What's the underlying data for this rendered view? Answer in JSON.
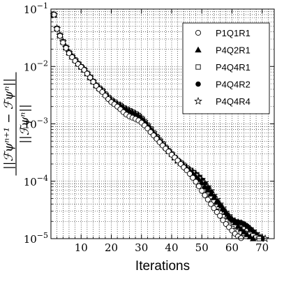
{
  "chart_data": {
    "type": "scatter",
    "xlabel": "Iterations",
    "ylabel": {
      "numerator": "||ℱψⁿ⁺¹ − ℱψⁿ||",
      "denominator": "||ℱψⁿ||"
    },
    "xlim": [
      0,
      74
    ],
    "ylim": [
      1e-05,
      0.1
    ],
    "yscale": "log",
    "grid": true,
    "legend_position": "top-right",
    "x_ticks": [
      {
        "value": 10,
        "label": "10"
      },
      {
        "value": 20,
        "label": "20"
      },
      {
        "value": 30,
        "label": "30"
      },
      {
        "value": 40,
        "label": "40"
      },
      {
        "value": 50,
        "label": "50"
      },
      {
        "value": 60,
        "label": "60"
      },
      {
        "value": 70,
        "label": "70"
      }
    ],
    "y_ticks": [
      {
        "value": 1e-05,
        "base": "10",
        "exp": "−5"
      },
      {
        "value": 0.0001,
        "base": "10",
        "exp": "−4"
      },
      {
        "value": 0.001,
        "base": "10",
        "exp": "−3"
      },
      {
        "value": 0.01,
        "base": "10",
        "exp": "−2"
      },
      {
        "value": 0.1,
        "base": "10",
        "exp": "−1"
      }
    ],
    "x": [
      1,
      2,
      3,
      4,
      5,
      6,
      7,
      8,
      9,
      10,
      11,
      12,
      13,
      14,
      15,
      16,
      17,
      18,
      19,
      20,
      21,
      22,
      23,
      24,
      25,
      26,
      27,
      28,
      29,
      30,
      31,
      32,
      33,
      34,
      35,
      36,
      37,
      38,
      39,
      40,
      41,
      42,
      43,
      44,
      45,
      46,
      47,
      48,
      49,
      50,
      51,
      52,
      53,
      54,
      55,
      56,
      57,
      58,
      59,
      60,
      61,
      62,
      63,
      64,
      65,
      66,
      67,
      68,
      69,
      70,
      71,
      72
    ],
    "series": [
      {
        "name": "P1Q1R1",
        "marker": "circle-open",
        "values": [
          0.08,
          0.045,
          0.034,
          0.026,
          0.021,
          0.017,
          0.0145,
          0.0125,
          0.011,
          0.0098,
          0.0087,
          0.0075,
          0.0064,
          0.0054,
          0.0046,
          0.004,
          0.0036,
          0.0031,
          0.0027,
          0.0024,
          0.0022,
          0.002,
          0.0018,
          0.0016,
          0.00145,
          0.00135,
          0.00128,
          0.00122,
          0.00115,
          0.00105,
          0.00094,
          0.00083,
          0.00072,
          0.00063,
          0.00055,
          0.00048,
          0.00042,
          0.00037,
          0.00033,
          0.00029,
          0.00026,
          0.00023,
          0.0002,
          0.000175,
          0.000155,
          0.000135,
          0.000115,
          9.8e-05,
          8.2e-05,
          6.8e-05,
          5.7e-05,
          4.8e-05,
          4e-05,
          3.4e-05,
          2.9e-05,
          2.5e-05,
          2.1e-05,
          1.8e-05,
          1.58e-05,
          1.38e-05,
          1.22e-05,
          1.1e-05,
          1.02e-05
        ]
      },
      {
        "name": "P4Q2R1",
        "marker": "triangle-filled",
        "values": [
          0.08,
          0.046,
          0.035,
          0.027,
          0.0215,
          0.0175,
          0.015,
          0.013,
          0.0113,
          0.0099,
          0.0088,
          0.0076,
          0.0065,
          0.0055,
          0.0047,
          0.0042,
          0.0038,
          0.0033,
          0.0029,
          0.0026,
          0.0024,
          0.0022,
          0.0021,
          0.0019,
          0.0018,
          0.0017,
          0.0016,
          0.0015,
          0.0014,
          0.00125,
          0.0011,
          0.00095,
          0.00082,
          0.0007,
          0.0006,
          0.00052,
          0.00045,
          0.00039,
          0.00034,
          0.0003,
          0.00026,
          0.00023,
          0.00021,
          0.00019,
          0.00017,
          0.000155,
          0.000138,
          0.000122,
          0.000108,
          9.5e-05,
          8.2e-05,
          7e-05,
          6e-05,
          5.2e-05,
          4.5e-05,
          3.9e-05,
          3.3e-05,
          2.9e-05,
          2.5e-05,
          2.2e-05,
          1.9e-05,
          1.65e-05,
          1.48e-05,
          1.32e-05,
          1.18e-05,
          1.08e-05,
          1e-05
        ]
      },
      {
        "name": "P4Q4R1",
        "marker": "square-open",
        "values": [
          0.08,
          0.046,
          0.035,
          0.027,
          0.0215,
          0.0175,
          0.015,
          0.013,
          0.0112,
          0.0099,
          0.0088,
          0.0076,
          0.0065,
          0.0055,
          0.0047,
          0.0042,
          0.0038,
          0.0033,
          0.0029,
          0.0026,
          0.0024,
          0.0022,
          0.0021,
          0.0019,
          0.0018,
          0.0017,
          0.0016,
          0.0015,
          0.0014,
          0.00125,
          0.0011,
          0.00095,
          0.00082,
          0.0007,
          0.0006,
          0.00052,
          0.00045,
          0.00039,
          0.00034,
          0.0003,
          0.00026,
          0.00023,
          0.00021,
          0.00019,
          0.00017,
          0.000155,
          0.00014,
          0.000125,
          0.00011,
          9.5e-05,
          8e-05,
          6.6e-05,
          5.4e-05,
          4.4e-05,
          3.6e-05,
          2.9e-05,
          2.4e-05,
          2e-05,
          1.7e-05,
          1.5e-05,
          1.38e-05,
          1.32e-05,
          1.28e-05,
          1.25e-05,
          1.22e-05,
          1.18e-05,
          1.12e-05,
          1.05e-05,
          1e-05
        ]
      },
      {
        "name": "P4Q4R2",
        "marker": "circle-filled",
        "values": [
          0.08,
          0.046,
          0.035,
          0.027,
          0.0215,
          0.0175,
          0.015,
          0.013,
          0.0112,
          0.0099,
          0.0088,
          0.0076,
          0.0065,
          0.0055,
          0.0047,
          0.0042,
          0.0038,
          0.0033,
          0.0029,
          0.0026,
          0.0024,
          0.0022,
          0.0021,
          0.0019,
          0.0018,
          0.0017,
          0.0016,
          0.0015,
          0.0014,
          0.00125,
          0.0011,
          0.00095,
          0.00082,
          0.0007,
          0.0006,
          0.00052,
          0.00045,
          0.00039,
          0.00034,
          0.0003,
          0.00026,
          0.00023,
          0.00021,
          0.00019,
          0.00017,
          0.000158,
          0.000145,
          0.000132,
          0.000118,
          0.000104,
          9e-05,
          7.7e-05,
          6.5e-05,
          5.4e-05,
          4.5e-05,
          3.8e-05,
          3.2e-05,
          2.7e-05,
          2.3e-05,
          2.1e-05,
          2e-05,
          1.95e-05,
          1.9e-05,
          1.8e-05,
          1.65e-05,
          1.48e-05,
          1.32e-05,
          1.18e-05,
          1.06e-05,
          1e-05
        ]
      },
      {
        "name": "P4Q4R4",
        "marker": "star-open",
        "values": [
          0.08,
          0.046,
          0.035,
          0.027,
          0.0215,
          0.0175,
          0.015,
          0.013,
          0.0112,
          0.0099,
          0.0088,
          0.0076,
          0.0065,
          0.0055,
          0.0047,
          0.0042,
          0.0038,
          0.0033,
          0.0029,
          0.0026,
          0.0024,
          0.0022,
          0.0021,
          0.0019,
          0.0018,
          0.0017,
          0.0016,
          0.0015,
          0.0014,
          0.00125,
          0.0011,
          0.00095,
          0.00082,
          0.0007,
          0.0006,
          0.00052,
          0.00045,
          0.00039,
          0.00034,
          0.0003,
          0.00026,
          0.00023,
          0.00021,
          0.00019,
          0.00017,
          0.00016,
          0.000148,
          0.000136,
          0.000122,
          0.000108,
          9.4e-05,
          8e-05,
          6.8e-05,
          5.7e-05,
          4.8e-05,
          4e-05,
          3.4e-05,
          2.9e-05,
          2.5e-05,
          2.2e-05,
          2e-05,
          1.92e-05,
          1.85e-05,
          1.75e-05,
          1.62e-05,
          1.48e-05,
          1.35e-05,
          1.22e-05,
          1.12e-05,
          1.05e-05,
          1e-05,
          9.7e-06
        ]
      }
    ]
  }
}
